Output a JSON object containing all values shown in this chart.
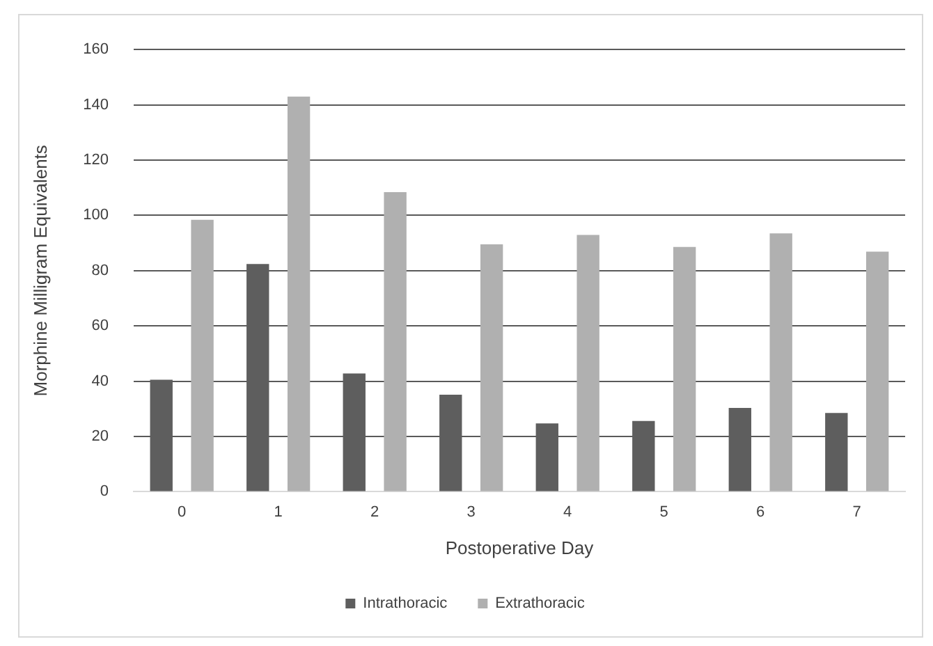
{
  "chart_data": {
    "type": "bar",
    "xlabel": "Postoperative Day",
    "ylabel": "Morphine Milligram Equivalents",
    "categories": [
      "0",
      "1",
      "2",
      "3",
      "4",
      "5",
      "6",
      "7"
    ],
    "series": [
      {
        "name": "Intrathoracic",
        "color": "#5e5e5e",
        "values": [
          40.5,
          82.4,
          42.8,
          35.1,
          24.7,
          25.6,
          30.3,
          28.5
        ]
      },
      {
        "name": "Extrathoracic",
        "color": "#b0b0b0",
        "values": [
          98.4,
          143,
          108.4,
          89.5,
          92.9,
          88.6,
          93.5,
          86.9
        ]
      }
    ],
    "ylim": [
      0,
      160
    ],
    "yticks": [
      0,
      20,
      40,
      60,
      80,
      100,
      120,
      140,
      160
    ],
    "grid": "y",
    "legend": "bottom"
  }
}
